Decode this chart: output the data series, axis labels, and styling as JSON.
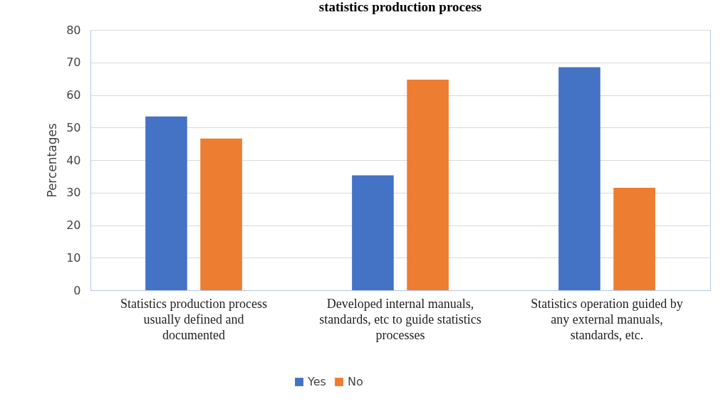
{
  "chart_data": {
    "type": "bar",
    "title": "statistics production process",
    "ylabel": "Percentages",
    "categories": [
      "Statistics production process usually defined and documented",
      "Developed internal manuals, standards, etc to guide statistics processes",
      "Statistics operation guided by any external manuals, standards, etc."
    ],
    "series": [
      {
        "name": "Yes",
        "color": "#4472c4",
        "values": [
          53.4,
          35.3,
          68.5
        ]
      },
      {
        "name": "No",
        "color": "#ed7d31",
        "values": [
          46.6,
          64.7,
          31.5
        ]
      }
    ],
    "ylim": [
      0,
      80
    ],
    "yticks": [
      0,
      10,
      20,
      30,
      40,
      50,
      60,
      70,
      80
    ],
    "grid": "y",
    "legend": "bottom"
  }
}
